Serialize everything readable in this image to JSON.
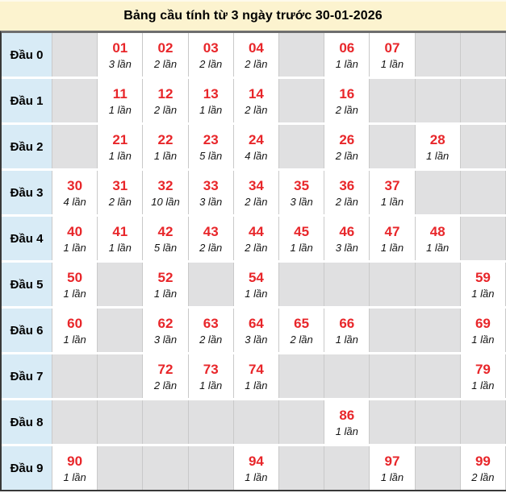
{
  "title": "Bảng cầu tính từ 3 ngày trước 30-01-2026",
  "colors": {
    "title_bg": "#fcf3cf",
    "label_cell_bg": "#d8ebf6",
    "empty_cell_bg": "#e0e0e1",
    "filled_cell_bg": "#ffffff",
    "number_red": "#e8262a",
    "outer_border": "#383838",
    "column_border": "#c9c9c9"
  },
  "table": {
    "rows": [
      {
        "label": "Đầu 0",
        "cells": [
          null,
          {
            "num": "01",
            "times": "3 lần"
          },
          {
            "num": "02",
            "times": "2 lần"
          },
          {
            "num": "03",
            "times": "2 lần"
          },
          {
            "num": "04",
            "times": "2 lần"
          },
          null,
          {
            "num": "06",
            "times": "1 lần"
          },
          {
            "num": "07",
            "times": "1 lần"
          },
          null,
          null
        ]
      },
      {
        "label": "Đầu 1",
        "cells": [
          null,
          {
            "num": "11",
            "times": "1 lần"
          },
          {
            "num": "12",
            "times": "2 lần"
          },
          {
            "num": "13",
            "times": "1 lần"
          },
          {
            "num": "14",
            "times": "2 lần"
          },
          null,
          {
            "num": "16",
            "times": "2 lần"
          },
          null,
          null,
          null
        ]
      },
      {
        "label": "Đầu 2",
        "cells": [
          null,
          {
            "num": "21",
            "times": "1 lần"
          },
          {
            "num": "22",
            "times": "1 lần"
          },
          {
            "num": "23",
            "times": "5 lần"
          },
          {
            "num": "24",
            "times": "4 lần"
          },
          null,
          {
            "num": "26",
            "times": "2 lần"
          },
          null,
          {
            "num": "28",
            "times": "1 lần"
          },
          null
        ]
      },
      {
        "label": "Đầu 3",
        "cells": [
          {
            "num": "30",
            "times": "4 lần"
          },
          {
            "num": "31",
            "times": "2 lần"
          },
          {
            "num": "32",
            "times": "10 lần"
          },
          {
            "num": "33",
            "times": "3 lần"
          },
          {
            "num": "34",
            "times": "2 lần"
          },
          {
            "num": "35",
            "times": "3 lần"
          },
          {
            "num": "36",
            "times": "2 lần"
          },
          {
            "num": "37",
            "times": "1 lần"
          },
          null,
          null
        ]
      },
      {
        "label": "Đầu 4",
        "cells": [
          {
            "num": "40",
            "times": "1 lần"
          },
          {
            "num": "41",
            "times": "1 lần"
          },
          {
            "num": "42",
            "times": "5 lần"
          },
          {
            "num": "43",
            "times": "2 lần"
          },
          {
            "num": "44",
            "times": "2 lần"
          },
          {
            "num": "45",
            "times": "1 lần"
          },
          {
            "num": "46",
            "times": "3 lần"
          },
          {
            "num": "47",
            "times": "1 lần"
          },
          {
            "num": "48",
            "times": "1 lần"
          },
          null
        ]
      },
      {
        "label": "Đầu 5",
        "cells": [
          {
            "num": "50",
            "times": "1 lần"
          },
          null,
          {
            "num": "52",
            "times": "1 lần"
          },
          null,
          {
            "num": "54",
            "times": "1 lần"
          },
          null,
          null,
          null,
          null,
          {
            "num": "59",
            "times": "1 lần"
          }
        ]
      },
      {
        "label": "Đầu 6",
        "cells": [
          {
            "num": "60",
            "times": "1 lần"
          },
          null,
          {
            "num": "62",
            "times": "3 lần"
          },
          {
            "num": "63",
            "times": "2 lần"
          },
          {
            "num": "64",
            "times": "3 lần"
          },
          {
            "num": "65",
            "times": "2 lần"
          },
          {
            "num": "66",
            "times": "1 lần"
          },
          null,
          null,
          {
            "num": "69",
            "times": "1 lần"
          }
        ]
      },
      {
        "label": "Đầu 7",
        "cells": [
          null,
          null,
          {
            "num": "72",
            "times": "2 lần"
          },
          {
            "num": "73",
            "times": "1 lần"
          },
          {
            "num": "74",
            "times": "1 lần"
          },
          null,
          null,
          null,
          null,
          {
            "num": "79",
            "times": "1 lần"
          }
        ]
      },
      {
        "label": "Đầu 8",
        "cells": [
          null,
          null,
          null,
          null,
          null,
          null,
          {
            "num": "86",
            "times": "1 lần"
          },
          null,
          null,
          null
        ]
      },
      {
        "label": "Đầu 9",
        "cells": [
          {
            "num": "90",
            "times": "1 lần"
          },
          null,
          null,
          null,
          {
            "num": "94",
            "times": "1 lần"
          },
          null,
          null,
          {
            "num": "97",
            "times": "1 lần"
          },
          null,
          {
            "num": "99",
            "times": "2 lần"
          }
        ]
      }
    ]
  }
}
